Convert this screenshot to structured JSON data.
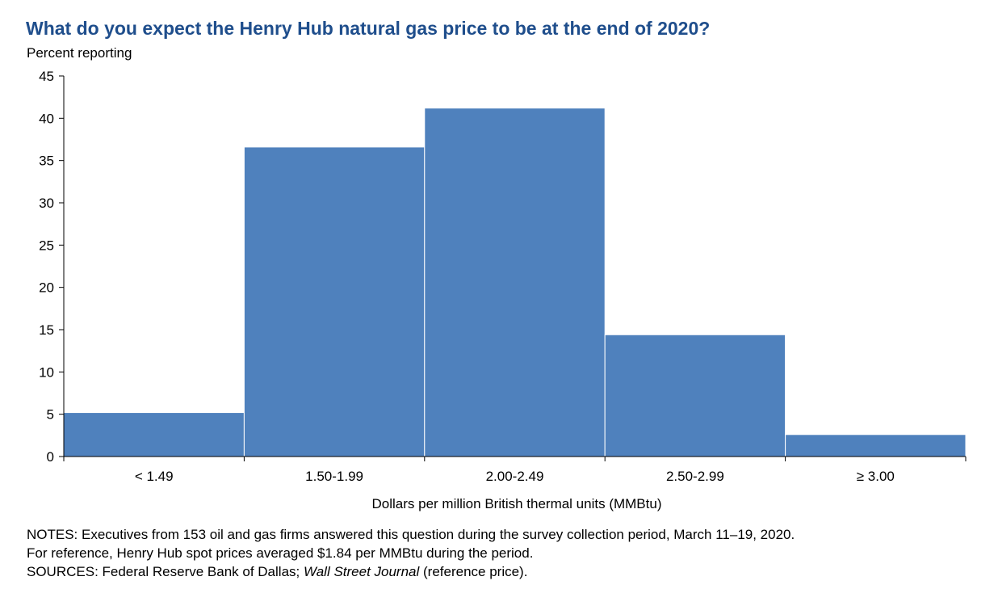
{
  "chart_data": {
    "type": "bar",
    "title": "What do you expect the Henry Hub natural gas price to be at the end of 2020?",
    "ylabel": "Percent reporting",
    "xlabel": "Dollars per million British thermal units (MMBtu)",
    "categories": [
      "< 1.49",
      "1.50-1.99",
      "2.00-2.49",
      "2.50-2.99",
      "≥ 3.00"
    ],
    "values": [
      5.2,
      36.6,
      41.2,
      14.4,
      2.6
    ],
    "ylim": [
      0,
      45
    ],
    "yticks": [
      "0",
      "5",
      "10",
      "15",
      "20",
      "25",
      "30",
      "35",
      "40",
      "45"
    ],
    "bar_color": "#4f81bd",
    "grid": false,
    "legend": "none"
  },
  "notes": {
    "line1": "NOTES: Executives from 153 oil and gas firms answered this question during the survey collection period, March 11–19, 2020.",
    "line2": "For reference, Henry Hub spot prices averaged $1.84 per MMBtu during the period.",
    "line3_prefix": "SOURCES: Federal Reserve Bank of Dallas; ",
    "line3_italic": "Wall Street Journal",
    "line3_suffix": " (reference price)."
  },
  "colors": {
    "title": "#1f4e8c",
    "bar": "#4f81bd",
    "axis": "#000000"
  }
}
